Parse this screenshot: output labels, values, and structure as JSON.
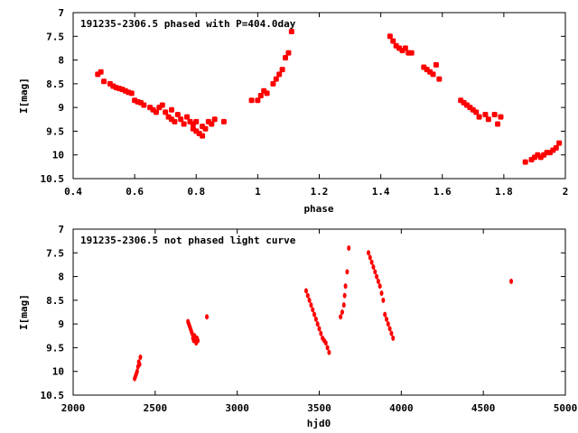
{
  "chart_data": [
    {
      "type": "scatter",
      "title": "191235-2306.5 phased with P=404.0day",
      "xlabel": "phase",
      "ylabel": "I[mag]",
      "xlim": [
        0.4,
        2.0
      ],
      "ylim": [
        10.5,
        7.0
      ],
      "y_inverted": true,
      "grid": false,
      "marker_color": "#ff0000",
      "xticks": [
        "0.4",
        "0.6",
        "0.8",
        "1",
        "1.2",
        "1.4",
        "1.6",
        "1.8",
        "2"
      ],
      "yticks": [
        "7",
        "7.5",
        "8",
        "8.5",
        "9",
        "9.5",
        "10",
        "10.5"
      ],
      "series": [
        {
          "x": [
            0.48,
            0.49,
            0.5,
            0.52,
            0.53,
            0.54,
            0.55,
            0.56,
            0.57,
            0.58,
            0.59,
            0.6,
            0.61,
            0.62,
            0.63,
            0.65,
            0.66,
            0.67,
            0.68,
            0.69,
            0.7,
            0.71,
            0.72,
            0.72,
            0.73,
            0.74,
            0.75,
            0.76,
            0.77,
            0.78,
            0.79,
            0.79,
            0.8,
            0.8,
            0.81,
            0.82,
            0.82,
            0.83,
            0.84,
            0.85,
            0.86,
            0.89,
            0.98,
            1.0,
            1.01,
            1.02,
            1.03,
            1.05,
            1.06,
            1.07,
            1.08,
            1.09,
            1.1,
            1.11,
            1.43,
            1.44,
            1.45,
            1.46,
            1.47,
            1.48,
            1.49,
            1.5,
            1.54,
            1.55,
            1.56,
            1.57,
            1.58,
            1.59,
            1.66,
            1.67,
            1.68,
            1.69,
            1.7,
            1.71,
            1.72,
            1.74,
            1.75,
            1.77,
            1.78,
            1.79,
            1.87,
            1.89,
            1.9,
            1.91,
            1.92,
            1.93,
            1.94,
            1.95,
            1.96,
            1.97,
            1.98
          ],
          "y": [
            8.3,
            8.25,
            8.45,
            8.5,
            8.55,
            8.58,
            8.6,
            8.62,
            8.65,
            8.68,
            8.7,
            8.85,
            8.88,
            8.9,
            8.95,
            9.0,
            9.05,
            9.1,
            9.0,
            8.95,
            9.1,
            9.2,
            9.05,
            9.25,
            9.3,
            9.15,
            9.25,
            9.35,
            9.2,
            9.3,
            9.35,
            9.45,
            9.3,
            9.5,
            9.55,
            9.4,
            9.6,
            9.45,
            9.3,
            9.35,
            9.25,
            9.3,
            8.85,
            8.85,
            8.75,
            8.65,
            8.7,
            8.5,
            8.4,
            8.3,
            8.2,
            7.95,
            7.85,
            7.4,
            7.5,
            7.6,
            7.7,
            7.75,
            7.8,
            7.75,
            7.85,
            7.85,
            8.15,
            8.2,
            8.25,
            8.3,
            8.1,
            8.4,
            8.85,
            8.9,
            8.95,
            9.0,
            9.05,
            9.1,
            9.2,
            9.15,
            9.25,
            9.15,
            9.35,
            9.2,
            10.15,
            10.1,
            10.05,
            10.0,
            10.05,
            10.0,
            9.95,
            9.95,
            9.9,
            9.85,
            9.75
          ]
        }
      ]
    },
    {
      "type": "scatter",
      "title": "191235-2306.5 not phased light curve",
      "xlabel": "hjd0",
      "ylabel": "I[mag]",
      "xlim": [
        2000,
        5000
      ],
      "ylim": [
        10.5,
        7.0
      ],
      "y_inverted": true,
      "grid": false,
      "marker_color": "#ff0000",
      "xticks": [
        "2000",
        "2500",
        "3000",
        "3500",
        "4000",
        "4500",
        "5000"
      ],
      "yticks": [
        "7",
        "7.5",
        "8",
        "8.5",
        "9",
        "9.5",
        "10",
        "10.5"
      ],
      "series": [
        {
          "x": [
            2375,
            2380,
            2385,
            2390,
            2395,
            2400,
            2405,
            2410,
            2700,
            2705,
            2710,
            2715,
            2720,
            2725,
            2730,
            2735,
            2740,
            2745,
            2750,
            2755,
            2760,
            2815,
            3420,
            3430,
            3440,
            3450,
            3460,
            3470,
            3480,
            3490,
            3500,
            3510,
            3520,
            3530,
            3540,
            3550,
            3560,
            3630,
            3640,
            3650,
            3655,
            3660,
            3670,
            3680,
            3800,
            3810,
            3820,
            3830,
            3840,
            3850,
            3860,
            3870,
            3880,
            3890,
            3900,
            3910,
            3920,
            3930,
            3940,
            3950,
            4670
          ],
          "y": [
            10.15,
            10.1,
            10.05,
            10.0,
            9.9,
            9.8,
            9.85,
            9.7,
            8.95,
            9.0,
            9.05,
            9.1,
            9.15,
            9.2,
            9.3,
            9.35,
            9.25,
            9.3,
            9.4,
            9.3,
            9.35,
            8.85,
            8.3,
            8.4,
            8.5,
            8.6,
            8.7,
            8.8,
            8.9,
            9.0,
            9.1,
            9.2,
            9.3,
            9.35,
            9.4,
            9.5,
            9.6,
            8.85,
            8.75,
            8.6,
            8.4,
            8.2,
            7.9,
            7.4,
            7.5,
            7.6,
            7.7,
            7.8,
            7.9,
            8.0,
            8.1,
            8.2,
            8.35,
            8.5,
            8.8,
            8.9,
            9.0,
            9.1,
            9.2,
            9.3,
            8.1
          ]
        }
      ]
    }
  ]
}
